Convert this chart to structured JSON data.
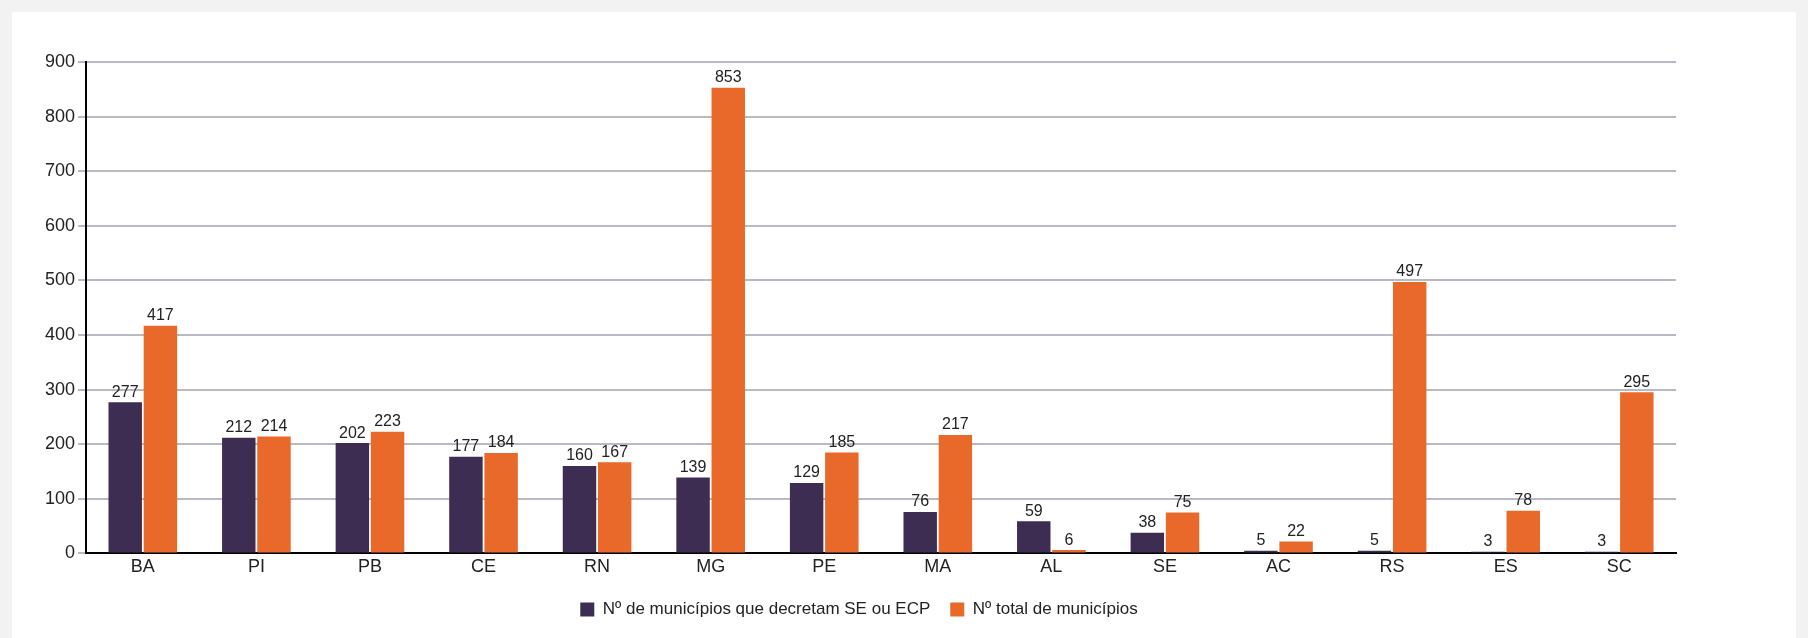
{
  "chart_data": {
    "type": "bar",
    "categories": [
      "BA",
      "PI",
      "PB",
      "CE",
      "RN",
      "MG",
      "PE",
      "MA",
      "AL",
      "SE",
      "AC",
      "RS",
      "ES",
      "SC"
    ],
    "series": [
      {
        "name": "Nº de municípios que decretam SE ou ECP",
        "color": "#3d2d52",
        "values": [
          277,
          212,
          202,
          177,
          160,
          139,
          129,
          76,
          59,
          38,
          5,
          5,
          3,
          3
        ]
      },
      {
        "name": "Nº total de municípios",
        "color": "#e8692a",
        "values": [
          417,
          214,
          223,
          184,
          167,
          853,
          185,
          217,
          6,
          75,
          22,
          497,
          78,
          295
        ]
      }
    ],
    "ylim": [
      0,
      900
    ],
    "yticks": [
      0,
      100,
      200,
      300,
      400,
      500,
      600,
      700,
      800,
      900
    ],
    "grid": "y",
    "legend": "bottom",
    "data_labels": true
  }
}
